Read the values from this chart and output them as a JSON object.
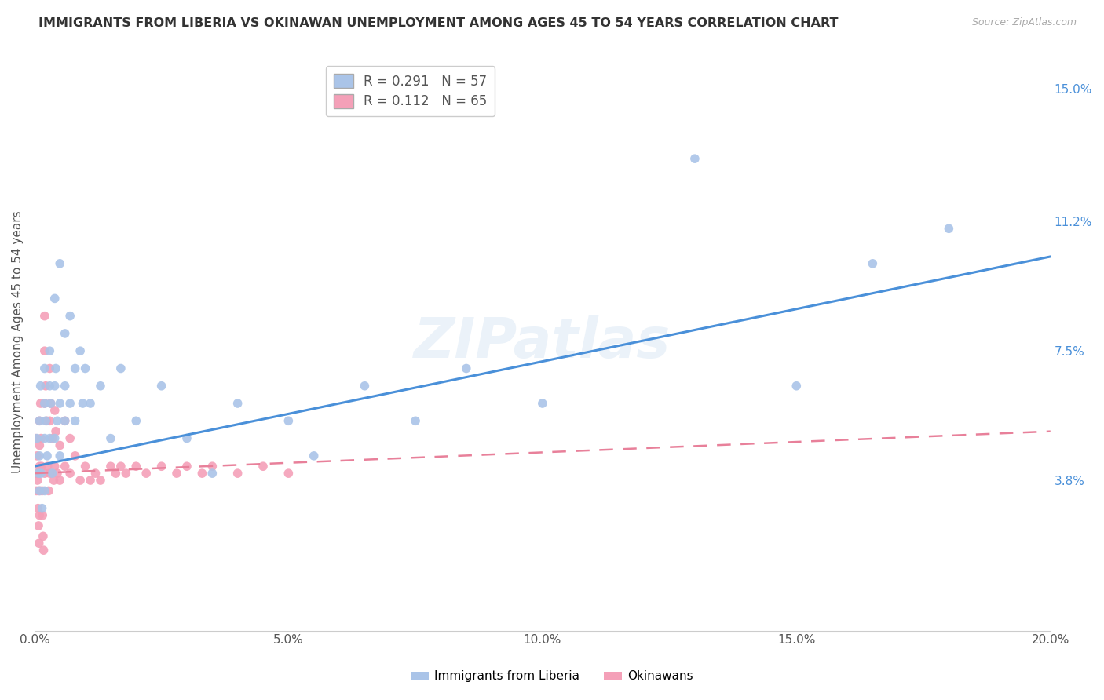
{
  "title": "IMMIGRANTS FROM LIBERIA VS OKINAWAN UNEMPLOYMENT AMONG AGES 45 TO 54 YEARS CORRELATION CHART",
  "source": "Source: ZipAtlas.com",
  "ylabel": "Unemployment Among Ages 45 to 54 years",
  "xlim": [
    0,
    0.2
  ],
  "ylim": [
    -0.005,
    0.16
  ],
  "xticks": [
    0.0,
    0.05,
    0.1,
    0.15,
    0.2
  ],
  "xticklabels": [
    "0.0%",
    "5.0%",
    "10.0%",
    "15.0%",
    "20.0%"
  ],
  "right_yticks": [
    0.038,
    0.075,
    0.112,
    0.15
  ],
  "right_yticklabels": [
    "3.8%",
    "7.5%",
    "11.2%",
    "15.0%"
  ],
  "liberia_color": "#aac4e8",
  "okinawa_color": "#f4a0b8",
  "liberia_line_color": "#4a90d9",
  "okinawa_line_color": "#e8809a",
  "watermark": "ZIPatlas",
  "liberia_x": [
    0.0005,
    0.0008,
    0.001,
    0.001,
    0.001,
    0.0012,
    0.0013,
    0.0015,
    0.002,
    0.002,
    0.002,
    0.002,
    0.0022,
    0.0025,
    0.003,
    0.003,
    0.003,
    0.0032,
    0.0035,
    0.004,
    0.004,
    0.004,
    0.0042,
    0.0045,
    0.005,
    0.005,
    0.005,
    0.006,
    0.006,
    0.006,
    0.007,
    0.007,
    0.008,
    0.008,
    0.009,
    0.0095,
    0.01,
    0.011,
    0.013,
    0.015,
    0.017,
    0.02,
    0.025,
    0.03,
    0.035,
    0.04,
    0.05,
    0.055,
    0.065,
    0.075,
    0.085,
    0.1,
    0.13,
    0.15,
    0.165,
    0.18
  ],
  "liberia_y": [
    0.05,
    0.04,
    0.055,
    0.045,
    0.035,
    0.065,
    0.04,
    0.03,
    0.06,
    0.07,
    0.05,
    0.035,
    0.055,
    0.045,
    0.065,
    0.075,
    0.05,
    0.06,
    0.04,
    0.09,
    0.065,
    0.05,
    0.07,
    0.055,
    0.1,
    0.06,
    0.045,
    0.08,
    0.065,
    0.055,
    0.085,
    0.06,
    0.07,
    0.055,
    0.075,
    0.06,
    0.07,
    0.06,
    0.065,
    0.05,
    0.07,
    0.055,
    0.065,
    0.05,
    0.04,
    0.06,
    0.055,
    0.045,
    0.065,
    0.055,
    0.07,
    0.06,
    0.13,
    0.065,
    0.1,
    0.11
  ],
  "okinawa_x": [
    0.0002,
    0.0003,
    0.0004,
    0.0005,
    0.0006,
    0.0007,
    0.0008,
    0.0009,
    0.001,
    0.001,
    0.001,
    0.001,
    0.001,
    0.0012,
    0.0013,
    0.0014,
    0.0015,
    0.0016,
    0.0017,
    0.0018,
    0.002,
    0.002,
    0.002,
    0.002,
    0.0022,
    0.0024,
    0.0026,
    0.0028,
    0.003,
    0.003,
    0.003,
    0.0032,
    0.0035,
    0.0038,
    0.004,
    0.004,
    0.0042,
    0.0045,
    0.005,
    0.005,
    0.006,
    0.006,
    0.007,
    0.007,
    0.008,
    0.009,
    0.01,
    0.011,
    0.012,
    0.013,
    0.015,
    0.016,
    0.017,
    0.018,
    0.02,
    0.022,
    0.025,
    0.028,
    0.03,
    0.033,
    0.035,
    0.04,
    0.045,
    0.05
  ],
  "okinawa_y": [
    0.05,
    0.04,
    0.035,
    0.045,
    0.038,
    0.03,
    0.025,
    0.02,
    0.055,
    0.048,
    0.042,
    0.035,
    0.028,
    0.06,
    0.05,
    0.042,
    0.035,
    0.028,
    0.022,
    0.018,
    0.085,
    0.075,
    0.06,
    0.04,
    0.065,
    0.055,
    0.042,
    0.035,
    0.07,
    0.055,
    0.04,
    0.06,
    0.05,
    0.038,
    0.058,
    0.042,
    0.052,
    0.04,
    0.048,
    0.038,
    0.055,
    0.042,
    0.05,
    0.04,
    0.045,
    0.038,
    0.042,
    0.038,
    0.04,
    0.038,
    0.042,
    0.04,
    0.042,
    0.04,
    0.042,
    0.04,
    0.042,
    0.04,
    0.042,
    0.04,
    0.042,
    0.04,
    0.042,
    0.04
  ],
  "R_liberia": 0.291,
  "N_liberia": 57,
  "R_okinawa": 0.112,
  "N_okinawa": 65,
  "background_color": "#ffffff",
  "grid_color": "#e5e5e5"
}
